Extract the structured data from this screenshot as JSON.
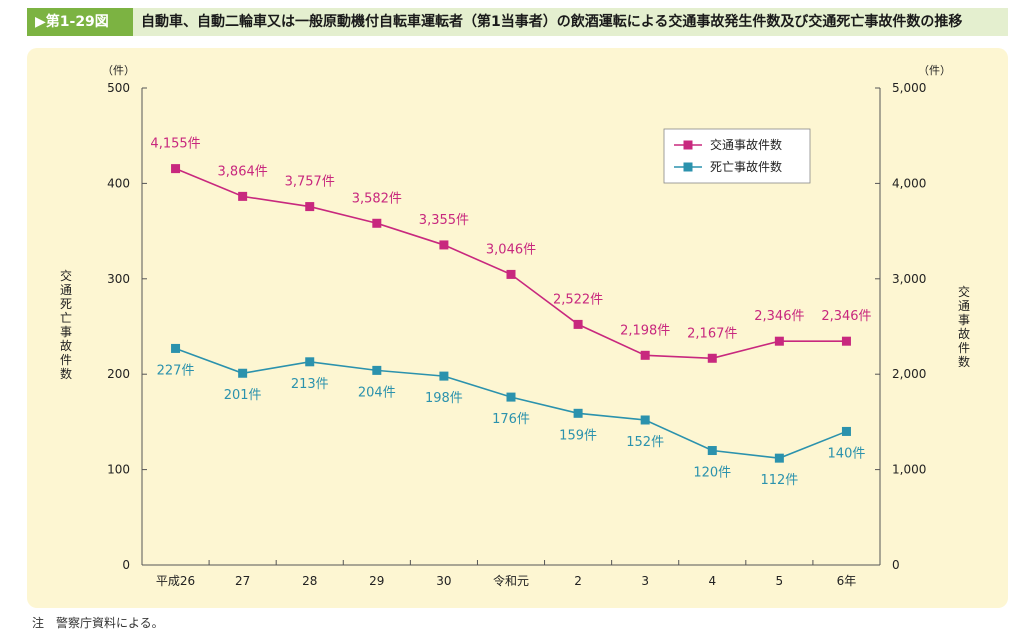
{
  "header": {
    "figure_label": "▶第1-29図",
    "title": "自動車、自動二輪車又は一般原動機付自転車運転者（第1当事者）の飲酒運転による交通事故発生件数及び交通死亡事故件数の推移"
  },
  "note": "注　警察庁資料による。",
  "chart_data": {
    "type": "line",
    "categories": [
      "平成26",
      "27",
      "28",
      "29",
      "30",
      "令和元",
      "2",
      "3",
      "4",
      "5",
      "6年"
    ],
    "left_axis": {
      "unit": "（件）",
      "label": "交通死亡事故件数",
      "min": 0,
      "max": 500,
      "ticks": [
        "0",
        "100",
        "200",
        "300",
        "400",
        "500"
      ]
    },
    "right_axis": {
      "unit": "（件）",
      "label": "交通事故件数",
      "min": 0,
      "max": 5000,
      "ticks": [
        "0",
        "1,000",
        "2,000",
        "3,000",
        "4,000",
        "5,000"
      ]
    },
    "series": [
      {
        "name": "交通事故件数",
        "axis": "right",
        "color": "#c8287e",
        "values": [
          4155,
          3864,
          3757,
          3582,
          3355,
          3046,
          2522,
          2198,
          2167,
          2346,
          2346
        ],
        "labels": [
          "4,155件",
          "3,864件",
          "3,757件",
          "3,582件",
          "3,355件",
          "3,046件",
          "2,522件",
          "2,198件",
          "2,167件",
          "2,346件",
          "2,346件"
        ]
      },
      {
        "name": "死亡事故件数",
        "axis": "left",
        "color": "#2b92ad",
        "values": [
          227,
          201,
          213,
          204,
          198,
          176,
          159,
          152,
          120,
          112,
          140
        ],
        "labels": [
          "227件",
          "201件",
          "213件",
          "204件",
          "198件",
          "176件",
          "159件",
          "152件",
          "120件",
          "112件",
          "140件"
        ]
      }
    ],
    "legend_position": "top-right",
    "grid": false
  }
}
